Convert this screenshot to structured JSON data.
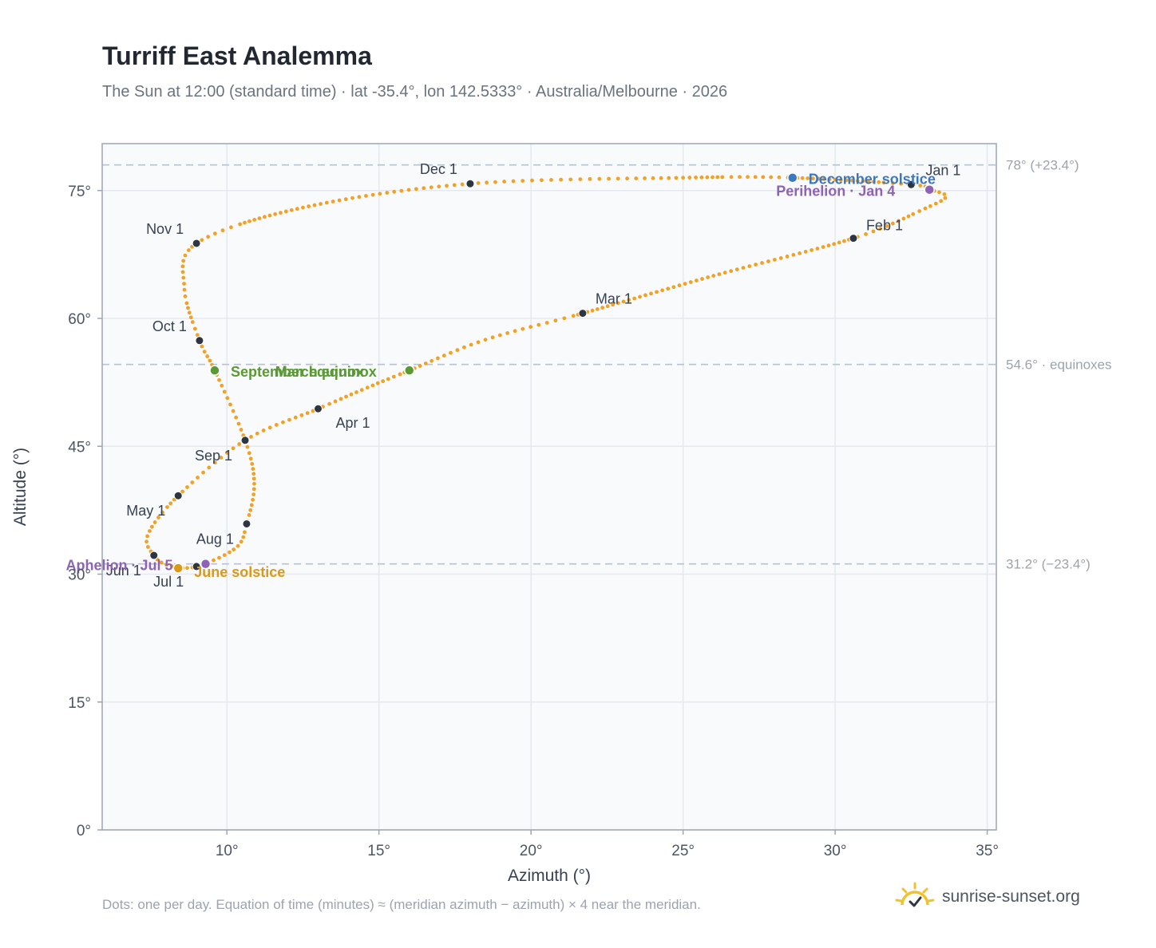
{
  "title": "Turriff East Analemma",
  "subtitle": "The Sun at 12:00 (standard time) · lat -35.4°, lon 142.5333° · Australia/Melbourne · 2026",
  "footer_note": "Dots: one per day. Equation of time (minutes) ≈ (meridian azimuth − azimuth) × 4 near the meridian.",
  "brand": {
    "text": "sunrise-sunset.org",
    "icon": "sun-logo-icon"
  },
  "colors": {
    "curve": "#f2a124",
    "month_dot": "#2d3540",
    "december_solstice": "#3b78c0",
    "june_solstice": "#d99a1a",
    "equinox": "#5a9a35",
    "apsis": "#8e63b5",
    "plot_bg": "#f8fafc",
    "grid": "#e5e9ef",
    "ref_line": "#b9c3cf",
    "frame": "#9aa5b5"
  },
  "chart_data": {
    "type": "scatter",
    "xlabel": "Azimuth (°)",
    "ylabel": "Altitude (°)",
    "xlim": [
      5.9,
      35.3
    ],
    "ylim": [
      0,
      80.5
    ],
    "x_ticks": [
      10,
      15,
      20,
      25,
      30,
      35
    ],
    "x_tick_labels": [
      "10°",
      "15°",
      "20°",
      "25°",
      "30°",
      "35°"
    ],
    "y_ticks": [
      0,
      15,
      30,
      45,
      60,
      75
    ],
    "y_tick_labels": [
      "0°",
      "15°",
      "30°",
      "45°",
      "60°",
      "75°"
    ],
    "grid": true,
    "reference_lines": [
      {
        "y": 78.0,
        "label": "78° (+23.4°)"
      },
      {
        "y": 54.6,
        "label": "54.6° · equinoxes"
      },
      {
        "y": 31.2,
        "label": "31.2° (−23.4°)"
      }
    ],
    "path_anchors": [
      {
        "x": 33.1,
        "y": 75.1
      },
      {
        "x": 33.65,
        "y": 74.3
      },
      {
        "x": 32.9,
        "y": 72.8
      },
      {
        "x": 30.6,
        "y": 69.4
      },
      {
        "x": 26.0,
        "y": 65.0
      },
      {
        "x": 21.7,
        "y": 60.6
      },
      {
        "x": 18.5,
        "y": 57.5
      },
      {
        "x": 16.0,
        "y": 53.9
      },
      {
        "x": 14.5,
        "y": 51.7
      },
      {
        "x": 13.0,
        "y": 49.4
      },
      {
        "x": 10.6,
        "y": 45.7
      },
      {
        "x": 8.4,
        "y": 39.2
      },
      {
        "x": 7.4,
        "y": 34.6
      },
      {
        "x": 7.6,
        "y": 32.2
      },
      {
        "x": 8.1,
        "y": 31.0
      },
      {
        "x": 9.0,
        "y": 30.9
      },
      {
        "x": 10.3,
        "y": 33.1
      },
      {
        "x": 10.65,
        "y": 35.9
      },
      {
        "x": 10.9,
        "y": 40.6
      },
      {
        "x": 10.6,
        "y": 45.7
      },
      {
        "x": 9.6,
        "y": 53.9
      },
      {
        "x": 9.1,
        "y": 57.4
      },
      {
        "x": 8.6,
        "y": 63.6
      },
      {
        "x": 9.0,
        "y": 68.8
      },
      {
        "x": 12.5,
        "y": 73.0
      },
      {
        "x": 18.0,
        "y": 75.8
      },
      {
        "x": 25.0,
        "y": 76.5
      },
      {
        "x": 28.6,
        "y": 76.5
      },
      {
        "x": 32.5,
        "y": 75.7
      },
      {
        "x": 33.1,
        "y": 75.1
      }
    ],
    "month_markers": [
      {
        "label": "Jan 1",
        "x": 32.5,
        "y": 75.7
      },
      {
        "label": "Feb 1",
        "x": 30.6,
        "y": 69.4
      },
      {
        "label": "Mar 1",
        "x": 21.7,
        "y": 60.6
      },
      {
        "label": "Apr 1",
        "x": 13.0,
        "y": 49.4
      },
      {
        "label": "May 1",
        "x": 8.4,
        "y": 39.2
      },
      {
        "label": "Jun 1",
        "x": 7.6,
        "y": 32.2
      },
      {
        "label": "Jul 1",
        "x": 9.0,
        "y": 30.9
      },
      {
        "label": "Aug 1",
        "x": 10.65,
        "y": 35.9
      },
      {
        "label": "Sep 1",
        "x": 10.6,
        "y": 45.7
      },
      {
        "label": "Oct 1",
        "x": 9.1,
        "y": 57.4
      },
      {
        "label": "Nov 1",
        "x": 9.0,
        "y": 68.8
      },
      {
        "label": "Dec 1",
        "x": 18.0,
        "y": 75.8
      }
    ],
    "events": [
      {
        "label": "December solstice",
        "x": 28.6,
        "y": 76.5,
        "color_key": "december_solstice"
      },
      {
        "label": "March equinox",
        "x": 16.0,
        "y": 53.9,
        "color_key": "equinox"
      },
      {
        "label": "September equinox",
        "x": 9.6,
        "y": 53.9,
        "color_key": "equinox"
      },
      {
        "label": "June solstice",
        "x": 8.4,
        "y": 30.7,
        "color_key": "june_solstice"
      },
      {
        "label": "Perihelion · Jan 4",
        "x": 33.1,
        "y": 75.1,
        "color_key": "apsis"
      },
      {
        "label": "Aphelion · Jul 5",
        "x": 9.3,
        "y": 31.2,
        "color_key": "apsis"
      }
    ]
  }
}
